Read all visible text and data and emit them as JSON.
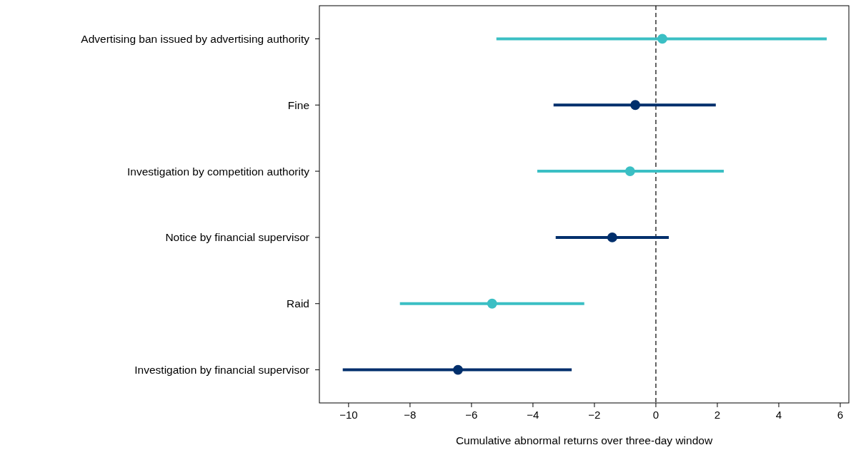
{
  "chart_data": {
    "type": "scatter",
    "orientation": "horizontal",
    "xlabel": "Cumulative abnormal returns over three-day window",
    "categories": [
      "Advertising ban issued by advertising authority",
      "Fine",
      "Investigation by competition authority",
      "Notice by financial supervisor",
      "Raid",
      "Investigation by financial supervisor"
    ],
    "values": [
      0.21,
      -0.67,
      -0.84,
      -1.42,
      -5.33,
      -6.44
    ],
    "errors": [
      [
        -5.19,
        5.56
      ],
      [
        -3.33,
        1.95
      ],
      [
        -3.86,
        2.21
      ],
      [
        -3.26,
        0.42
      ],
      [
        -8.33,
        -2.33
      ],
      [
        -10.19,
        -2.74
      ]
    ],
    "colors": [
      "#3bbfc4",
      "#002f6c",
      "#3bbfc4",
      "#002f6c",
      "#3bbfc4",
      "#002f6c"
    ],
    "marker": "circle",
    "xlim": [
      -10.95,
      6.28
    ],
    "xticks": [
      -10,
      -8,
      -6,
      -4,
      -2,
      0,
      2,
      4,
      6
    ],
    "ref_lines": [
      {
        "axis": "x",
        "value": 0,
        "color": "#333333",
        "line_style": "dashed"
      }
    ],
    "grid": false
  }
}
